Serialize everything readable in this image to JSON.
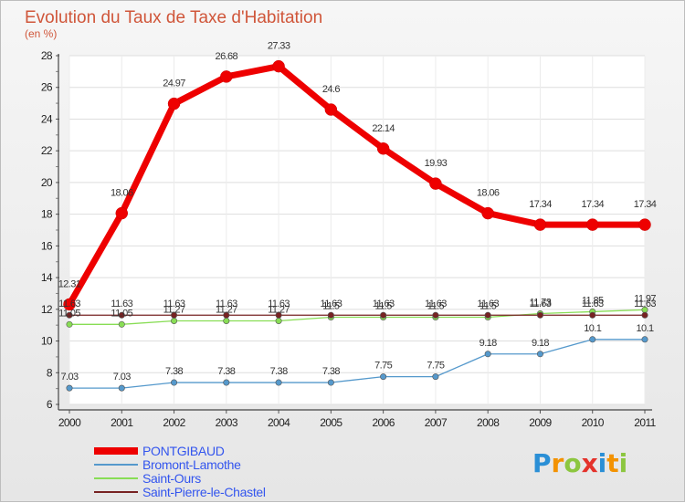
{
  "chart_data": {
    "type": "line",
    "title": "Evolution du Taux de Taxe d'Habitation",
    "subtitle": "(en %)",
    "xlabel": "",
    "ylabel": "",
    "ylim": [
      6,
      28
    ],
    "y_ticks": [
      "6",
      "8",
      "10",
      "12",
      "14",
      "16",
      "18",
      "20",
      "22",
      "24",
      "26",
      "28"
    ],
    "categories": [
      "2000",
      "2001",
      "2002",
      "2003",
      "2004",
      "2005",
      "2006",
      "2007",
      "2008",
      "2009",
      "2010",
      "2011"
    ],
    "legend_position": "bottom-left",
    "series": [
      {
        "name": "PONTGIBAUD",
        "color": "#ee0000",
        "legend_text_color": "#3355ee",
        "values": [
          12.31,
          18.06,
          24.97,
          26.68,
          27.33,
          24.6,
          22.14,
          19.93,
          18.06,
          17.34,
          17.34,
          17.34
        ],
        "labels": [
          "12.31",
          "18.06",
          "24.97",
          "26.68",
          "27.33",
          "24.6",
          "22.14",
          "19.93",
          "18.06",
          "17.34",
          "17.34",
          "17.34"
        ]
      },
      {
        "name": "Bromont-Lamothe",
        "color": "#5599cc",
        "legend_text_color": "#3355ee",
        "values": [
          7.03,
          7.03,
          7.38,
          7.38,
          7.38,
          7.38,
          7.75,
          7.75,
          9.18,
          9.18,
          10.1,
          10.1
        ],
        "labels": [
          "7.03",
          "7.03",
          "7.38",
          "7.38",
          "7.38",
          "7.38",
          "7.75",
          "7.75",
          "9.18",
          "9.18",
          "10.1",
          "10.1"
        ]
      },
      {
        "name": "Saint-Ours",
        "color": "#88dd55",
        "legend_text_color": "#3355ee",
        "values": [
          11.05,
          11.05,
          11.27,
          11.27,
          11.27,
          11.5,
          11.5,
          11.5,
          11.5,
          11.73,
          11.85,
          11.97
        ],
        "labels": [
          "11.05",
          "11.05",
          "11.27",
          "11.27",
          "11.27",
          "11.5",
          "11.5",
          "11.5",
          "11.5",
          "11.73",
          "11.85",
          "11.97"
        ]
      },
      {
        "name": "Saint-Pierre-le-Chastel",
        "color": "#772222",
        "legend_text_color": "#3355ee",
        "values": [
          11.63,
          11.63,
          11.63,
          11.63,
          11.63,
          11.63,
          11.63,
          11.63,
          11.63,
          11.63,
          11.63,
          11.63
        ],
        "labels": [
          "11.63",
          "11.63",
          "11.63",
          "11.63",
          "11.63",
          "11.63",
          "11.63",
          "11.63",
          "11.63",
          "11.63",
          "11.63",
          "11.63"
        ]
      }
    ]
  },
  "logo": {
    "letters": [
      "P",
      "r",
      "o",
      "x",
      "i",
      "t",
      "i"
    ],
    "colors": [
      "#2a8fd6",
      "#f39200",
      "#8cc63f",
      "#e4322b",
      "#2a8fd6",
      "#f39200",
      "#8cc63f"
    ]
  }
}
